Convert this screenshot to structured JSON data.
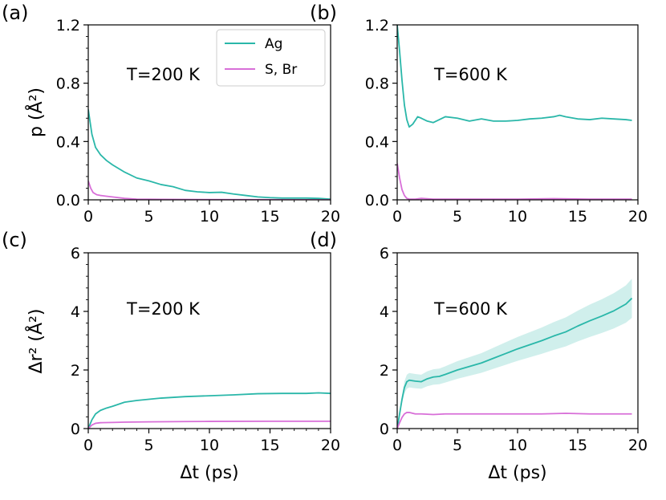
{
  "colors": {
    "ag": "#2ab7a9",
    "sbr": "#d86fd8",
    "axis": "#000000"
  },
  "legend": {
    "entries": [
      {
        "key": "ag",
        "label": "Ag"
      },
      {
        "key": "sbr",
        "label": "S, Br"
      }
    ]
  },
  "x_ticks": [
    "0",
    "5",
    "10",
    "15",
    "20"
  ],
  "chart_data": [
    {
      "type": "line",
      "panel_label": "(a)",
      "annotation": "T=200 K",
      "ylabel": "p (Å²)",
      "xlabel": "",
      "xlim": [
        0,
        20
      ],
      "ylim": [
        0,
        1.2
      ],
      "y_ticks": [
        "0.0",
        "0.4",
        "0.8",
        "1.2"
      ],
      "series": [
        {
          "key": "ag",
          "name": "Ag",
          "x": [
            0,
            0.3,
            0.6,
            1,
            1.5,
            2,
            3,
            4,
            5,
            6,
            7,
            8,
            9,
            10,
            11,
            12,
            13,
            14,
            15,
            16,
            17,
            18,
            19,
            20
          ],
          "y": [
            0.62,
            0.45,
            0.36,
            0.31,
            0.27,
            0.24,
            0.19,
            0.15,
            0.13,
            0.105,
            0.09,
            0.065,
            0.055,
            0.05,
            0.052,
            0.04,
            0.03,
            0.02,
            0.015,
            0.012,
            0.012,
            0.012,
            0.01,
            0.005
          ]
        },
        {
          "key": "sbr",
          "name": "S, Br",
          "x": [
            0,
            0.2,
            0.4,
            0.7,
            1,
            1.5,
            2,
            3,
            4,
            6,
            10,
            15,
            20
          ],
          "y": [
            0.13,
            0.08,
            0.05,
            0.035,
            0.03,
            0.025,
            0.02,
            0.01,
            0.005,
            0.003,
            0.002,
            0.001,
            0.0
          ]
        }
      ]
    },
    {
      "type": "line",
      "panel_label": "(b)",
      "annotation": "T=600 K",
      "ylabel": "",
      "xlabel": "",
      "xlim": [
        0,
        20
      ],
      "ylim": [
        0,
        1.2
      ],
      "y_ticks": [
        "0.0",
        "0.4",
        "0.8",
        "1.2"
      ],
      "series": [
        {
          "key": "ag",
          "name": "Ag",
          "x": [
            0,
            0.2,
            0.4,
            0.6,
            0.8,
            1,
            1.3,
            1.7,
            2,
            2.5,
            3,
            3.5,
            4,
            5,
            6,
            7,
            8,
            9,
            10,
            11,
            12,
            13,
            13.5,
            14,
            15,
            16,
            17,
            18,
            19,
            19.5
          ],
          "y": [
            1.2,
            1.02,
            0.82,
            0.65,
            0.55,
            0.5,
            0.52,
            0.57,
            0.56,
            0.54,
            0.53,
            0.55,
            0.57,
            0.56,
            0.54,
            0.555,
            0.54,
            0.54,
            0.545,
            0.555,
            0.56,
            0.57,
            0.58,
            0.57,
            0.555,
            0.55,
            0.56,
            0.555,
            0.55,
            0.545
          ]
        },
        {
          "key": "sbr",
          "name": "S, Br",
          "x": [
            0,
            0.2,
            0.4,
            0.6,
            0.8,
            1,
            1.5,
            2,
            3,
            5,
            8,
            10,
            13,
            16,
            19.5
          ],
          "y": [
            0.25,
            0.15,
            0.07,
            0.03,
            0.01,
            0.005,
            0.005,
            0.01,
            0.005,
            0.005,
            0.005,
            0.005,
            0.008,
            0.005,
            0.005
          ]
        }
      ]
    },
    {
      "type": "line",
      "panel_label": "(c)",
      "annotation": "T=200 K",
      "ylabel": "Δr² (Å²)",
      "xlabel": "Δt (ps)",
      "xlim": [
        0,
        20
      ],
      "ylim": [
        0,
        6
      ],
      "y_ticks": [
        "0",
        "2",
        "4",
        "6"
      ],
      "series": [
        {
          "key": "ag",
          "name": "Ag",
          "x": [
            0,
            0.3,
            0.6,
            1,
            1.5,
            2,
            3,
            4,
            5,
            6,
            8,
            10,
            12,
            14,
            16,
            18,
            19,
            20
          ],
          "y": [
            0,
            0.3,
            0.5,
            0.62,
            0.7,
            0.76,
            0.9,
            0.96,
            1.0,
            1.04,
            1.09,
            1.12,
            1.15,
            1.19,
            1.2,
            1.2,
            1.22,
            1.2
          ]
        },
        {
          "key": "sbr",
          "name": "S, Br",
          "x": [
            0,
            0.3,
            0.6,
            1,
            2,
            3,
            5,
            8,
            10,
            15,
            20
          ],
          "y": [
            0,
            0.12,
            0.18,
            0.2,
            0.21,
            0.22,
            0.23,
            0.24,
            0.245,
            0.25,
            0.25
          ]
        }
      ]
    },
    {
      "type": "line",
      "panel_label": "(d)",
      "annotation": "T=600 K",
      "ylabel": "",
      "xlabel": "Δt (ps)",
      "xlim": [
        0,
        20
      ],
      "ylim": [
        0,
        6
      ],
      "y_ticks": [
        "0",
        "2",
        "4",
        "6"
      ],
      "series": [
        {
          "key": "ag",
          "name": "Ag",
          "x": [
            0,
            0.2,
            0.4,
            0.6,
            0.8,
            1,
            1.5,
            2,
            2.5,
            3,
            3.5,
            4,
            5,
            6,
            7,
            8,
            9,
            10,
            11,
            12,
            13,
            14,
            15,
            16,
            17,
            18,
            19,
            19.5
          ],
          "y": [
            0,
            0.5,
            1.0,
            1.4,
            1.6,
            1.65,
            1.62,
            1.6,
            1.7,
            1.76,
            1.78,
            1.85,
            2.0,
            2.12,
            2.24,
            2.4,
            2.56,
            2.72,
            2.86,
            3.0,
            3.16,
            3.3,
            3.5,
            3.68,
            3.84,
            4.02,
            4.25,
            4.45
          ],
          "band": 0.15
        },
        {
          "key": "sbr",
          "name": "S, Br",
          "x": [
            0,
            0.2,
            0.4,
            0.6,
            0.8,
            1,
            1.5,
            2,
            3,
            4,
            6,
            8,
            10,
            12,
            14,
            16,
            18,
            19.5
          ],
          "y": [
            0,
            0.2,
            0.38,
            0.5,
            0.55,
            0.55,
            0.5,
            0.5,
            0.48,
            0.5,
            0.5,
            0.5,
            0.5,
            0.5,
            0.52,
            0.5,
            0.5,
            0.5
          ]
        }
      ]
    }
  ]
}
